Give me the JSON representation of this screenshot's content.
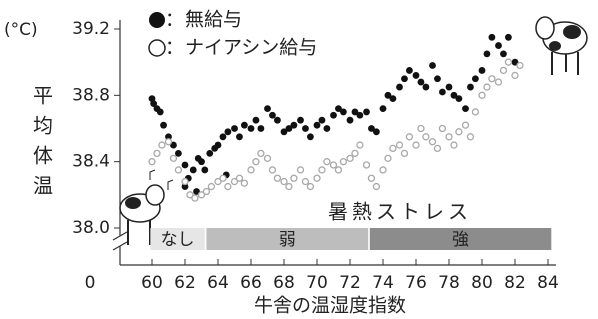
{
  "chart_data": {
    "type": "scatter",
    "y_unit": "(°C)",
    "ylabel": "平均体温",
    "xlabel": "牛舎の温湿度指数",
    "y_break_label": "0",
    "legend_separator": "：",
    "xlim": [
      58,
      84.4
    ],
    "ylim": [
      38.0,
      39.2
    ],
    "xticks": [
      60,
      62,
      64,
      66,
      68,
      70,
      72,
      74,
      76,
      78,
      80,
      82,
      84
    ],
    "yticks": [
      {
        "value": 38.0,
        "label": "38.0"
      },
      38.4,
      38.8,
      39.2
    ],
    "stress_title": "暑熱ストレス",
    "stress_bands": [
      {
        "label": "なし",
        "x": [
          59.9,
          63.2
        ],
        "color": "#e6e6e6"
      },
      {
        "label": "弱",
        "x": [
          63.3,
          73.1
        ],
        "color": "#bdbdbd"
      },
      {
        "label": "強",
        "x": [
          73.2,
          84.2
        ],
        "color": "#8c8c8c"
      }
    ],
    "series": [
      {
        "name": "無給与",
        "color": "#111111",
        "marker": "filled",
        "x": [
          60,
          60.1,
          60.3,
          60.5,
          60.7,
          61,
          61.3,
          61.6,
          62,
          62.2,
          62.5,
          62.8,
          63,
          63.2,
          63.5,
          63.8,
          64,
          64.3,
          64.6,
          65,
          65.3,
          65.6,
          66,
          66.3,
          66.6,
          67,
          67.3,
          67.6,
          68,
          68.3,
          68.6,
          69,
          69.3,
          69.6,
          70,
          70.3,
          70.6,
          71,
          71.3,
          71.6,
          72,
          72.3,
          72.6,
          73,
          73.3,
          73.6,
          74,
          74.3,
          74.6,
          75,
          75.3,
          75.6,
          76,
          76.3,
          76.6,
          77,
          77.3,
          77.6,
          78,
          78.3,
          78.6,
          79,
          79.3,
          79.6,
          80,
          80.3,
          80.6,
          81,
          81.3,
          81.6,
          82,
          62,
          62.7,
          64.5
        ],
        "values": [
          38.78,
          38.75,
          38.72,
          38.7,
          38.62,
          38.55,
          38.5,
          38.45,
          38.38,
          38.3,
          38.35,
          38.42,
          38.4,
          38.35,
          38.45,
          38.48,
          38.5,
          38.55,
          38.58,
          38.6,
          38.55,
          38.62,
          38.6,
          38.65,
          38.6,
          38.72,
          38.68,
          38.65,
          38.58,
          38.6,
          38.62,
          38.65,
          38.6,
          38.55,
          38.62,
          38.65,
          38.6,
          38.68,
          38.72,
          38.7,
          38.65,
          38.7,
          38.68,
          38.7,
          38.6,
          38.58,
          38.72,
          38.8,
          38.78,
          38.85,
          38.9,
          38.95,
          38.92,
          38.88,
          38.85,
          38.98,
          38.9,
          38.82,
          38.85,
          38.8,
          38.78,
          38.72,
          38.85,
          38.9,
          38.95,
          39.05,
          39.15,
          39.1,
          39.05,
          39.15,
          39.0,
          38.25,
          38.22,
          38.32
        ]
      },
      {
        "name": "ナイアシン給与",
        "color": "#a8a8a8",
        "marker": "open",
        "x": [
          60,
          60.3,
          60.6,
          61,
          61.3,
          61.6,
          62,
          62.3,
          62.6,
          63,
          63.3,
          63.6,
          64,
          64.3,
          64.6,
          65,
          65.3,
          65.6,
          66,
          66.3,
          66.6,
          67,
          67.3,
          67.6,
          68,
          68.3,
          68.6,
          69,
          69.3,
          69.6,
          70,
          70.3,
          70.6,
          71,
          71.3,
          71.6,
          72,
          72.3,
          72.6,
          73,
          73.3,
          73.6,
          74,
          74.3,
          74.6,
          75,
          75.3,
          75.6,
          76,
          76.3,
          76.6,
          77,
          77.3,
          77.6,
          78,
          78.3,
          78.6,
          79,
          79.3,
          79.6,
          80,
          80.3,
          80.6,
          81,
          81.3,
          81.6,
          82,
          82.3
        ],
        "values": [
          38.4,
          38.45,
          38.5,
          38.52,
          38.42,
          38.35,
          38.28,
          38.2,
          38.18,
          38.2,
          38.22,
          38.25,
          38.28,
          38.3,
          38.25,
          38.28,
          38.3,
          38.27,
          38.35,
          38.4,
          38.45,
          38.42,
          38.35,
          38.3,
          38.28,
          38.25,
          38.3,
          38.35,
          38.28,
          38.25,
          38.3,
          38.35,
          38.4,
          38.38,
          38.35,
          38.4,
          38.42,
          38.45,
          38.5,
          38.38,
          38.3,
          38.25,
          38.35,
          38.42,
          38.48,
          38.5,
          38.45,
          38.55,
          38.5,
          38.6,
          38.55,
          38.52,
          38.48,
          38.6,
          38.55,
          38.5,
          38.58,
          38.62,
          38.55,
          38.7,
          38.8,
          38.85,
          38.9,
          38.88,
          38.95,
          39.0,
          38.92,
          38.98
        ]
      }
    ]
  }
}
